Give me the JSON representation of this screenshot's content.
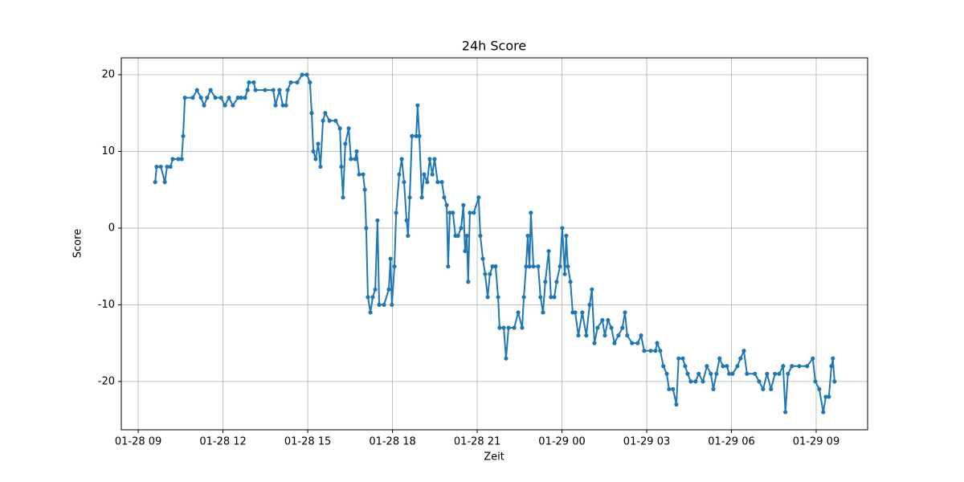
{
  "chart_data": {
    "type": "line",
    "title": "24h Score",
    "x_label": "Zeit",
    "y_label": "Score",
    "x": [
      9.6,
      9.65,
      9.8,
      9.94,
      10.02,
      10.14,
      10.22,
      10.42,
      10.54,
      10.59,
      10.65,
      10.93,
      11.08,
      11.22,
      11.33,
      11.44,
      11.56,
      11.73,
      11.93,
      12.07,
      12.21,
      12.35,
      12.53,
      12.64,
      12.78,
      12.87,
      12.92,
      13.09,
      13.15,
      13.49,
      13.78,
      13.86,
      14.0,
      14.12,
      14.23,
      14.29,
      14.4,
      14.63,
      14.8,
      14.97,
      15.08,
      15.14,
      15.2,
      15.28,
      15.37,
      15.45,
      15.54,
      15.62,
      15.77,
      15.99,
      16.14,
      16.19,
      16.25,
      16.33,
      16.45,
      16.53,
      16.68,
      16.73,
      16.82,
      16.96,
      17.02,
      17.07,
      17.13,
      17.22,
      17.3,
      17.39,
      17.47,
      17.53,
      17.7,
      17.87,
      17.93,
      17.98,
      18.07,
      18.13,
      18.24,
      18.33,
      18.41,
      18.5,
      18.55,
      18.61,
      18.69,
      18.84,
      18.89,
      18.95,
      19.04,
      19.12,
      19.23,
      19.32,
      19.41,
      19.49,
      19.6,
      19.75,
      19.83,
      19.92,
      19.97,
      20.03,
      20.14,
      20.23,
      20.32,
      20.43,
      20.51,
      20.57,
      20.63,
      20.68,
      20.74,
      20.88,
      21.05,
      21.11,
      21.2,
      21.28,
      21.37,
      21.45,
      21.54,
      21.65,
      21.74,
      21.79,
      21.94,
      22.02,
      22.11,
      22.31,
      22.45,
      22.59,
      22.65,
      22.73,
      22.79,
      22.85,
      22.9,
      22.99,
      23.16,
      23.24,
      23.33,
      23.41,
      23.53,
      23.61,
      23.73,
      23.81,
      23.93,
      24.01,
      24.1,
      24.15,
      24.21,
      24.3,
      24.38,
      24.47,
      24.58,
      24.72,
      24.86,
      24.98,
      25.06,
      25.15,
      25.26,
      25.43,
      25.52,
      25.63,
      25.75,
      25.86,
      26.0,
      26.14,
      26.23,
      26.31,
      26.48,
      26.68,
      26.8,
      26.91,
      27.14,
      27.31,
      27.37,
      27.48,
      27.59,
      27.71,
      27.79,
      27.93,
      28.05,
      28.13,
      28.28,
      28.36,
      28.45,
      28.56,
      28.73,
      28.84,
      28.99,
      29.13,
      29.27,
      29.36,
      29.47,
      29.58,
      29.7,
      29.84,
      29.92,
      30.04,
      30.21,
      30.32,
      30.44,
      30.55,
      30.83,
      30.98,
      31.12,
      31.26,
      31.4,
      31.54,
      31.69,
      31.83,
      31.91,
      32.0,
      32.14,
      32.4,
      32.68,
      32.88,
      32.97,
      33.11,
      33.25,
      33.34,
      33.45,
      33.54,
      33.59,
      33.65
    ],
    "values": [
      6,
      8,
      8,
      6,
      8,
      8,
      9,
      9,
      9,
      12,
      17,
      17,
      18,
      17,
      16,
      17,
      18,
      17,
      17,
      16,
      17,
      16,
      17,
      17,
      17,
      18,
      19,
      19,
      18,
      18,
      18,
      16,
      18,
      16,
      16,
      18,
      19,
      19,
      20,
      20,
      19,
      15,
      10,
      9,
      11,
      8,
      14,
      15,
      14,
      14,
      13,
      8,
      4,
      11,
      13,
      9,
      9,
      10,
      7,
      7,
      5,
      0,
      -9,
      -11,
      -9,
      -8,
      1,
      -10,
      -10,
      -8,
      -4,
      -10,
      -5,
      2,
      7,
      9,
      6,
      1,
      -1,
      4,
      12,
      12,
      16,
      12,
      4,
      7,
      6,
      9,
      7,
      9,
      6,
      6,
      4,
      3,
      -5,
      2,
      2,
      -1,
      -1,
      0,
      3,
      -3,
      -1,
      -7,
      2,
      2,
      4,
      -1,
      -4,
      -6,
      -9,
      -6,
      -5,
      -5,
      -9,
      -13,
      -13,
      -17,
      -13,
      -13,
      -11,
      -13,
      -9,
      -5,
      -1,
      -5,
      2,
      -5,
      -5,
      -9,
      -11,
      -7,
      -3,
      -9,
      -9,
      -7,
      -5,
      0,
      -6,
      -1,
      -5,
      -7,
      -11,
      -11,
      -14,
      -11,
      -14,
      -10,
      -8,
      -15,
      -13,
      -12,
      -14,
      -12,
      -13,
      -15,
      -14,
      -13,
      -11,
      -14,
      -15,
      -15,
      -14,
      -16,
      -16,
      -16,
      -15,
      -16,
      -18,
      -19,
      -21,
      -21,
      -23,
      -17,
      -17,
      -18,
      -19,
      -20,
      -20,
      -19,
      -20,
      -18,
      -19,
      -21,
      -19,
      -17,
      -18,
      -18,
      -19,
      -19,
      -18,
      -17,
      -16,
      -19,
      -19,
      -20,
      -21,
      -19,
      -21,
      -19,
      -19,
      -18,
      -24,
      -19,
      -18,
      -18,
      -18,
      -17,
      -20,
      -21,
      -24,
      -22,
      -22,
      -18,
      -17,
      -20
    ],
    "color": "#1f77b4",
    "xlim": [
      8.4,
      34.82
    ],
    "ylim": [
      -26.3,
      22.2
    ],
    "xticks": [
      {
        "value": 9,
        "label": "01-28 09"
      },
      {
        "value": 12,
        "label": "01-28 12"
      },
      {
        "value": 15,
        "label": "01-28 15"
      },
      {
        "value": 18,
        "label": "01-28 18"
      },
      {
        "value": 21,
        "label": "01-28 21"
      },
      {
        "value": 24,
        "label": "01-29 00"
      },
      {
        "value": 27,
        "label": "01-29 03"
      },
      {
        "value": 30,
        "label": "01-29 06"
      },
      {
        "value": 33,
        "label": "01-29 09"
      }
    ],
    "yticks": [
      -20,
      -10,
      0,
      10,
      20
    ],
    "grid": true
  }
}
